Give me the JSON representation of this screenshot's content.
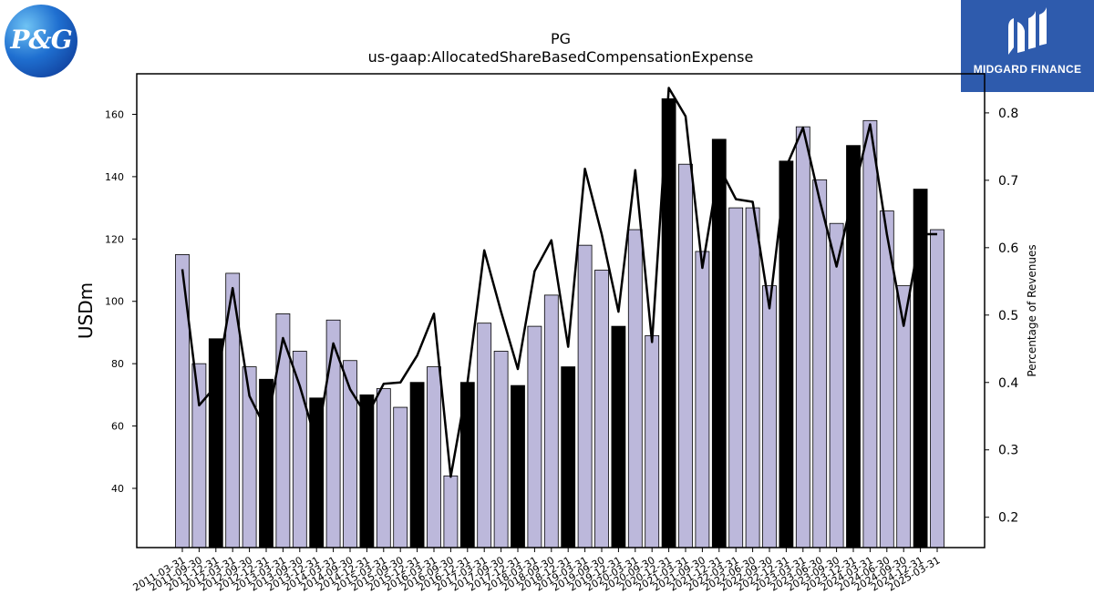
{
  "logos": {
    "left": {
      "text": "P&G"
    },
    "right": {
      "text": "MIDGARD FINANCE"
    }
  },
  "colors": {
    "bar_regular": "#bcb8db",
    "bar_highlight": "#000000",
    "line": "#000000"
  },
  "chart_data": {
    "type": "bar",
    "title": "PG",
    "subtitle": "us-gaap:AllocatedShareBasedCompensationExpense",
    "ylabel": "USDm",
    "y2label": "Percentage of Revenues",
    "ylim": [
      21,
      173
    ],
    "y2lim": [
      0.155,
      0.858
    ],
    "yticks": [
      40,
      60,
      80,
      100,
      120,
      140,
      160
    ],
    "y2ticks": [
      0.2,
      0.3,
      0.4,
      0.5,
      0.6,
      0.7,
      0.8
    ],
    "categories": [
      "2011-03-31",
      "2011-09-30",
      "2011-12-31",
      "2012-03-31",
      "2012-09-30",
      "2012-12-31",
      "2013-03-31",
      "2013-09-30",
      "2013-12-31",
      "2014-03-31",
      "2014-09-30",
      "2014-12-31",
      "2015-03-31",
      "2015-09-30",
      "2015-12-31",
      "2016-03-31",
      "2016-09-30",
      "2016-12-31",
      "2017-03-31",
      "2017-09-30",
      "2017-12-31",
      "2018-03-31",
      "2018-09-30",
      "2018-12-31",
      "2019-03-31",
      "2019-09-30",
      "2019-12-31",
      "2020-03-31",
      "2020-09-30",
      "2020-12-31",
      "2021-03-31",
      "2021-09-30",
      "2021-12-31",
      "2022-03-31",
      "2022-06-30",
      "2022-09-30",
      "2022-12-31",
      "2023-03-31",
      "2023-06-30",
      "2023-09-30",
      "2023-12-31",
      "2024-03-31",
      "2024-06-30",
      "2024-09-30",
      "2024-12-31",
      "2025-03-31"
    ],
    "series": [
      {
        "type": "bar",
        "values": [
          115,
          80,
          88,
          109,
          79,
          75,
          96,
          84,
          69,
          94,
          81,
          70,
          72,
          66,
          74,
          79,
          44,
          74,
          93,
          84,
          73,
          92,
          102,
          79,
          118,
          110,
          92,
          123,
          89,
          165,
          144,
          116,
          152,
          130,
          130,
          105,
          145,
          156,
          139,
          125,
          150,
          158,
          129,
          105,
          136,
          123
        ],
        "highlight": [
          false,
          false,
          true,
          false,
          false,
          true,
          false,
          false,
          true,
          false,
          false,
          true,
          false,
          false,
          true,
          false,
          false,
          true,
          false,
          false,
          true,
          false,
          false,
          true,
          false,
          false,
          true,
          false,
          false,
          true,
          false,
          false,
          true,
          false,
          false,
          false,
          true,
          false,
          false,
          false,
          true,
          false,
          false,
          false,
          true,
          false
        ]
      },
      {
        "type": "line",
        "axis": "right",
        "values": [
          0.568,
          0.366,
          0.395,
          0.54,
          0.38,
          0.33,
          0.466,
          0.395,
          0.31,
          0.458,
          0.39,
          0.35,
          0.398,
          0.4,
          0.44,
          0.502,
          0.26,
          0.4,
          0.596,
          0.505,
          0.42,
          0.565,
          0.611,
          0.453,
          0.717,
          0.62,
          0.505,
          0.715,
          0.46,
          0.837,
          0.795,
          0.57,
          0.72,
          0.672,
          0.668,
          0.51,
          0.72,
          0.778,
          0.67,
          0.572,
          0.68,
          0.783,
          0.62,
          0.484,
          0.62,
          0.62
        ]
      }
    ],
    "grid": false
  }
}
